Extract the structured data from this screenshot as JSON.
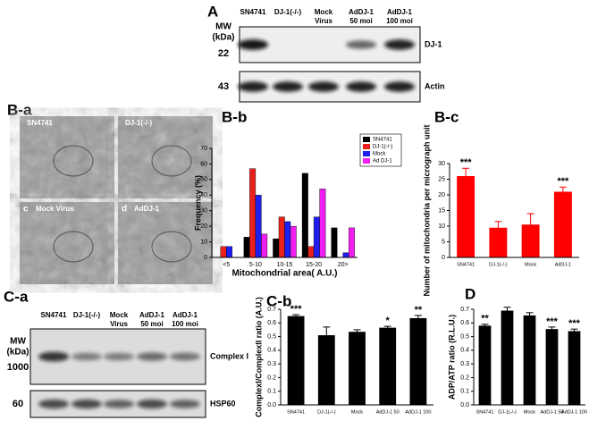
{
  "panels": {
    "A": {
      "label": "A",
      "lanes": [
        [
          "SN4741"
        ],
        [
          "DJ-1(-/-)"
        ],
        [
          "Mock",
          "Virus"
        ],
        [
          "AdDJ-1",
          "50 moi"
        ],
        [
          "AdDJ-1",
          "100 moi"
        ]
      ],
      "mw": "MW",
      "unit": "(kDa)",
      "markers": [
        "22",
        "43"
      ],
      "bands": [
        "DJ-1",
        "Actin"
      ]
    },
    "B-a": {
      "label": "B-a",
      "tiles": [
        {
          "name": "SN4741"
        },
        {
          "name": "DJ-1(-/-)"
        },
        {
          "letter": "c",
          "name": "Mock Virus"
        },
        {
          "letter": "d",
          "name": "AdDJ-1"
        }
      ]
    },
    "C-a": {
      "label": "C-a",
      "lanes": [
        [
          "SN4741"
        ],
        [
          "DJ-1(-/-)"
        ],
        [
          "Mock",
          "Virus"
        ],
        [
          "AdDJ-1",
          "50 moi"
        ],
        [
          "AdDJ-1",
          "100 moi"
        ]
      ],
      "mw": "MW",
      "unit": "(kDa)",
      "markers": [
        "1000",
        "60"
      ],
      "bands": [
        "Complex I",
        "HSP60"
      ]
    }
  },
  "chart_data": [
    {
      "type": "bar",
      "title": "B-b",
      "xlabel": "Mitochondrial area( A.U.)",
      "ylabel": "Frequency (%)",
      "categories": [
        "<5",
        "5-10",
        "10-15",
        "15-20",
        "20>"
      ],
      "series": [
        {
          "name": "SN4741",
          "color": "#000000",
          "values": [
            0,
            13,
            12,
            54,
            19
          ]
        },
        {
          "name": "DJ-1(-/-)",
          "color": "#e8211d",
          "values": [
            7,
            57,
            26,
            7,
            0
          ]
        },
        {
          "name": "Mock",
          "color": "#1f1ff0",
          "values": [
            7,
            40,
            23,
            26,
            3
          ]
        },
        {
          "name": "Ad DJ-1",
          "color": "#f01ff0",
          "values": [
            0,
            15,
            20,
            44,
            19
          ]
        }
      ],
      "ylim": [
        0,
        70
      ],
      "yticks": [
        0,
        10,
        20,
        30,
        40,
        50,
        60,
        70
      ],
      "legend": "top-right"
    },
    {
      "type": "bar",
      "title": "B-c",
      "ylabel": "Number of mitochondria per micrograph unit",
      "categories": [
        "SN4741",
        "DJ-1(-/-)",
        "Mock",
        "AdDJ-1"
      ],
      "values": [
        26,
        9.5,
        10.5,
        21
      ],
      "errors": [
        2.5,
        2,
        3.5,
        1.5
      ],
      "significance": [
        "***",
        null,
        null,
        "***"
      ],
      "color": "#ff0000",
      "ylim": [
        0,
        30
      ],
      "yticks": [
        0,
        5,
        10,
        15,
        20,
        25,
        30
      ]
    },
    {
      "type": "bar",
      "title": "C-b",
      "ylabel": "ComplexI/ComplexII ratio (A.U.)",
      "categories": [
        "SN4741",
        "DJ-1(-/-)",
        "Mock",
        "AdDJ-1 50",
        "AdDJ-1 100"
      ],
      "values": [
        0.65,
        0.51,
        0.535,
        0.565,
        0.635
      ],
      "errors": [
        0.01,
        0.06,
        0.015,
        0.01,
        0.02
      ],
      "significance": [
        "***",
        null,
        null,
        "*",
        "**"
      ],
      "color": "#000000",
      "ylim": [
        0,
        0.7
      ],
      "yticks": [
        {
          "value": 0,
          "label": "0.0"
        },
        0.1,
        0.2,
        0.3,
        0.4,
        0.5,
        0.6,
        0.7
      ]
    },
    {
      "type": "bar",
      "title": "D",
      "ylabel": "ADP/ATP ratio (R.L.U.)",
      "categories": [
        "SN4741",
        "DJ-1(-/-)",
        "Mock",
        "AdDJ-1 50",
        "AdDJ-1 100"
      ],
      "values": [
        0.58,
        0.69,
        0.655,
        0.555,
        0.54
      ],
      "errors": [
        0.01,
        0.025,
        0.02,
        0.015,
        0.015
      ],
      "significance": [
        "**",
        null,
        null,
        "***",
        "***"
      ],
      "color": "#000000",
      "ylim": [
        0,
        0.7
      ],
      "yticks": [
        {
          "value": 0,
          "label": "0.0"
        },
        0.1,
        0.2,
        0.3,
        0.4,
        0.5,
        0.6,
        0.7
      ]
    }
  ]
}
